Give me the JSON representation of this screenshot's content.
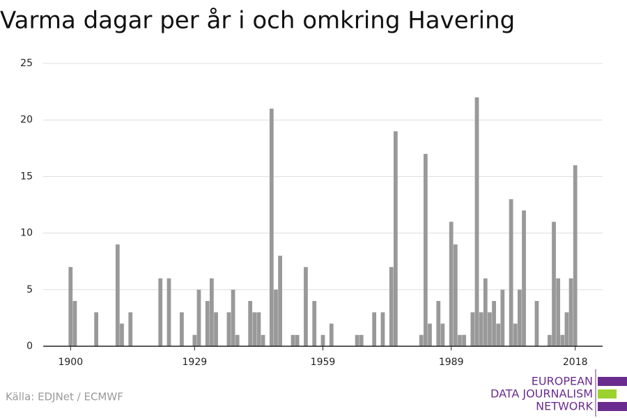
{
  "chart_data": {
    "type": "bar",
    "title": "Varma dagar per år i och omkring Havering",
    "x": [
      1900,
      1901,
      1906,
      1911,
      1912,
      1914,
      1921,
      1923,
      1926,
      1929,
      1930,
      1932,
      1933,
      1934,
      1937,
      1938,
      1939,
      1942,
      1943,
      1944,
      1945,
      1947,
      1948,
      1949,
      1952,
      1953,
      1955,
      1957,
      1959,
      1961,
      1967,
      1968,
      1971,
      1973,
      1975,
      1976,
      1982,
      1983,
      1984,
      1986,
      1987,
      1989,
      1990,
      1991,
      1992,
      1994,
      1995,
      1996,
      1997,
      1998,
      1999,
      2000,
      2001,
      2003,
      2004,
      2005,
      2006,
      2009,
      2012,
      2013,
      2014,
      2015,
      2016,
      2017,
      2018
    ],
    "values": [
      7,
      4,
      3,
      9,
      2,
      3,
      6,
      6,
      3,
      1,
      5,
      4,
      6,
      3,
      3,
      5,
      1,
      4,
      3,
      3,
      1,
      21,
      5,
      8,
      1,
      1,
      7,
      4,
      1,
      2,
      1,
      1,
      3,
      3,
      7,
      19,
      1,
      17,
      2,
      4,
      2,
      11,
      9,
      1,
      1,
      3,
      22,
      3,
      6,
      3,
      4,
      2,
      5,
      13,
      2,
      5,
      12,
      4,
      1,
      11,
      6,
      1,
      3,
      6,
      16
    ],
    "color": "#999999",
    "xlim": [
      1893.6,
      2024.4
    ],
    "xticks": [
      1900,
      1929,
      1959,
      1989,
      2018
    ],
    "ylim": [
      0,
      25
    ],
    "yticks": [
      0,
      5,
      10,
      15,
      20,
      25
    ],
    "grid": true,
    "source": "Källa: EDJNet / ECMWF",
    "logo": [
      "EUROPEAN",
      "DATA JOURNALISM",
      "NETWORK"
    ]
  }
}
